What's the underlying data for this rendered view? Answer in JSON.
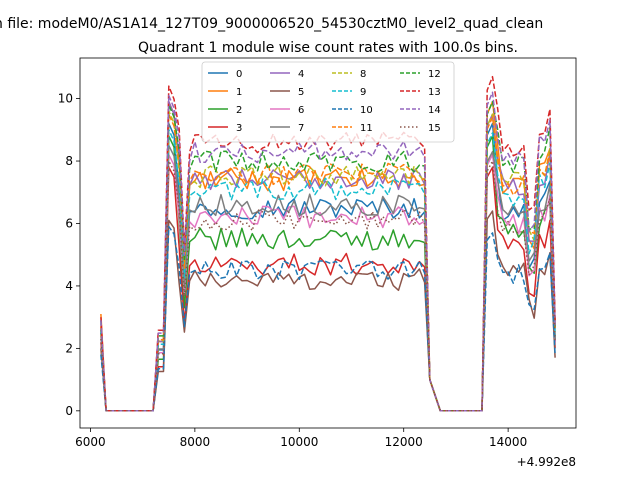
{
  "figure": {
    "suptitle": "n file: modeM0/AS1A14_127T09_9000006520_54530cztM0_level2_quad_clean",
    "title": "Quadrant 1 module wise count rates with 100.0s bins.",
    "x_offset_label": "+4.992e8"
  },
  "chart_data": {
    "type": "line",
    "title": "Quadrant 1 module wise count rates with 100.0s bins.",
    "xlabel": "",
    "ylabel": "",
    "x_offset": 499200000,
    "xlim": [
      5800,
      15300
    ],
    "ylim": [
      -0.55,
      11.3
    ],
    "xticks": [
      6000,
      8000,
      10000,
      12000,
      14000
    ],
    "xtick_labels": [
      "6000",
      "8000",
      "10000",
      "12000",
      "14000"
    ],
    "yticks": [
      0,
      2,
      4,
      6,
      8,
      10
    ],
    "ytick_labels": [
      "0",
      "2",
      "4",
      "6",
      "8",
      "10"
    ],
    "grid": false,
    "legend_placement": "top-center",
    "legend_columns": 4,
    "segments": [
      {
        "x_start": 6200,
        "x_end": 12500,
        "dx": 100
      },
      {
        "x_start": 12700,
        "x_end": 14950,
        "dx": 100
      }
    ],
    "series": [
      {
        "name": "0",
        "color": "#1f77b4",
        "dash": "solid",
        "levels": {
          "start": 2.6,
          "peak1": 9.2,
          "plateau": 6.5,
          "peak2": 9.2,
          "tail": 6.4,
          "end": 2.2
        }
      },
      {
        "name": "1",
        "color": "#ff7f0e",
        "dash": "solid",
        "levels": {
          "start": 3.1,
          "peak1": 9.9,
          "plateau": 7.4,
          "peak2": 9.9,
          "tail": 7.3,
          "end": 2.8
        }
      },
      {
        "name": "2",
        "color": "#2ca02c",
        "dash": "solid",
        "levels": {
          "start": 2.5,
          "peak1": 8.8,
          "plateau": 5.5,
          "peak2": 8.8,
          "tail": 5.8,
          "end": 2.3
        }
      },
      {
        "name": "3",
        "color": "#d62728",
        "dash": "solid",
        "levels": {
          "start": 2.2,
          "peak1": 7.8,
          "plateau": 4.7,
          "peak2": 7.8,
          "tail": 5.3,
          "end": 2.0
        }
      },
      {
        "name": "4",
        "color": "#9467bd",
        "dash": "solid",
        "levels": {
          "start": 2.8,
          "peak1": 9.9,
          "plateau": 7.4,
          "peak2": 9.5,
          "tail": 7.2,
          "end": 2.6
        }
      },
      {
        "name": "5",
        "color": "#8c564b",
        "dash": "solid",
        "levels": {
          "start": 2.0,
          "peak1": 6.1,
          "plateau": 4.2,
          "peak2": 6.4,
          "tail": 4.4,
          "end": 1.7
        }
      },
      {
        "name": "6",
        "color": "#e377c2",
        "dash": "solid",
        "levels": {
          "start": 2.4,
          "peak1": 8.2,
          "plateau": 6.2,
          "peak2": 8.2,
          "tail": 6.0,
          "end": 2.2
        }
      },
      {
        "name": "7",
        "color": "#7f7f7f",
        "dash": "solid",
        "levels": {
          "start": 2.5,
          "peak1": 8.5,
          "plateau": 6.6,
          "peak2": 8.3,
          "tail": 6.3,
          "end": 2.3
        }
      },
      {
        "name": "8",
        "color": "#bcbd22",
        "dash": "dashed",
        "levels": {
          "start": 2.7,
          "peak1": 9.6,
          "plateau": 7.5,
          "peak2": 9.5,
          "tail": 7.3,
          "end": 2.6
        }
      },
      {
        "name": "9",
        "color": "#17becf",
        "dash": "dashed",
        "levels": {
          "start": 2.6,
          "peak1": 9.0,
          "plateau": 7.1,
          "peak2": 8.9,
          "tail": 6.9,
          "end": 2.4
        }
      },
      {
        "name": "10",
        "color": "#1f77b4",
        "dash": "dashed",
        "levels": {
          "start": 1.8,
          "peak1": 5.9,
          "plateau": 4.5,
          "peak2": 5.7,
          "tail": 4.4,
          "end": 1.8
        }
      },
      {
        "name": "11",
        "color": "#ff7f0e",
        "dash": "dashed",
        "levels": {
          "start": 2.7,
          "peak1": 9.5,
          "plateau": 7.6,
          "peak2": 9.4,
          "tail": 7.2,
          "end": 2.6
        }
      },
      {
        "name": "12",
        "color": "#2ca02c",
        "dash": "dashed",
        "levels": {
          "start": 2.9,
          "peak1": 9.8,
          "plateau": 8.0,
          "peak2": 9.9,
          "tail": 7.9,
          "end": 2.7
        }
      },
      {
        "name": "13",
        "color": "#d62728",
        "dash": "dashed",
        "levels": {
          "start": 3.0,
          "peak1": 10.4,
          "plateau": 8.6,
          "peak2": 10.7,
          "tail": 8.4,
          "end": 2.9
        }
      },
      {
        "name": "14",
        "color": "#9467bd",
        "dash": "dashed",
        "levels": {
          "start": 2.9,
          "peak1": 10.1,
          "plateau": 8.3,
          "peak2": 10.2,
          "tail": 8.1,
          "end": 2.7
        }
      },
      {
        "name": "15",
        "color": "#8c564b",
        "dash": "dotted",
        "levels": {
          "start": 2.3,
          "peak1": 8.0,
          "plateau": 6.1,
          "peak2": 8.0,
          "tail": 5.9,
          "end": 2.2
        }
      }
    ]
  }
}
